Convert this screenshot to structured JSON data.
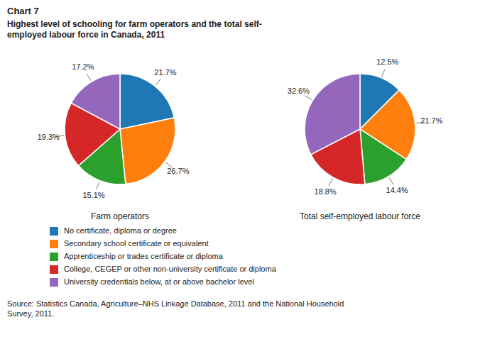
{
  "chart_data": {
    "type": "pie",
    "title": "Chart 7",
    "subtitle": "Highest level of schooling for farm operators and the total self-\nemployed labour force in Canada, 2011",
    "categories": [
      "No certificate, diploma or degree",
      "Secondary school certificate or equivalent",
      "Apprenticeship or trades certificate or diploma",
      "College, CEGEP or other non-university certificate or diploma",
      "University credentials below, at or above bachelor level"
    ],
    "series": [
      {
        "name": "Farm operators",
        "values": [
          21.7,
          26.7,
          15.1,
          19.3,
          17.2
        ],
        "value_labels": [
          "21.7%",
          "26.7%",
          "15.1%",
          "19.3%",
          "17.2%"
        ]
      },
      {
        "name": "Total self-employed labour force",
        "values": [
          12.5,
          21.7,
          14.4,
          18.8,
          32.6
        ],
        "value_labels": [
          "12.5%",
          "21.7%",
          "14.4%",
          "18.8%",
          "32.6%"
        ]
      }
    ],
    "data_labels": true,
    "legend": "bottom",
    "annotations": [
      "Source: Statistics Canada, Agriculture–NHS Linkage Database, 2011 and the National Household\nSurvey, 2011."
    ]
  }
}
